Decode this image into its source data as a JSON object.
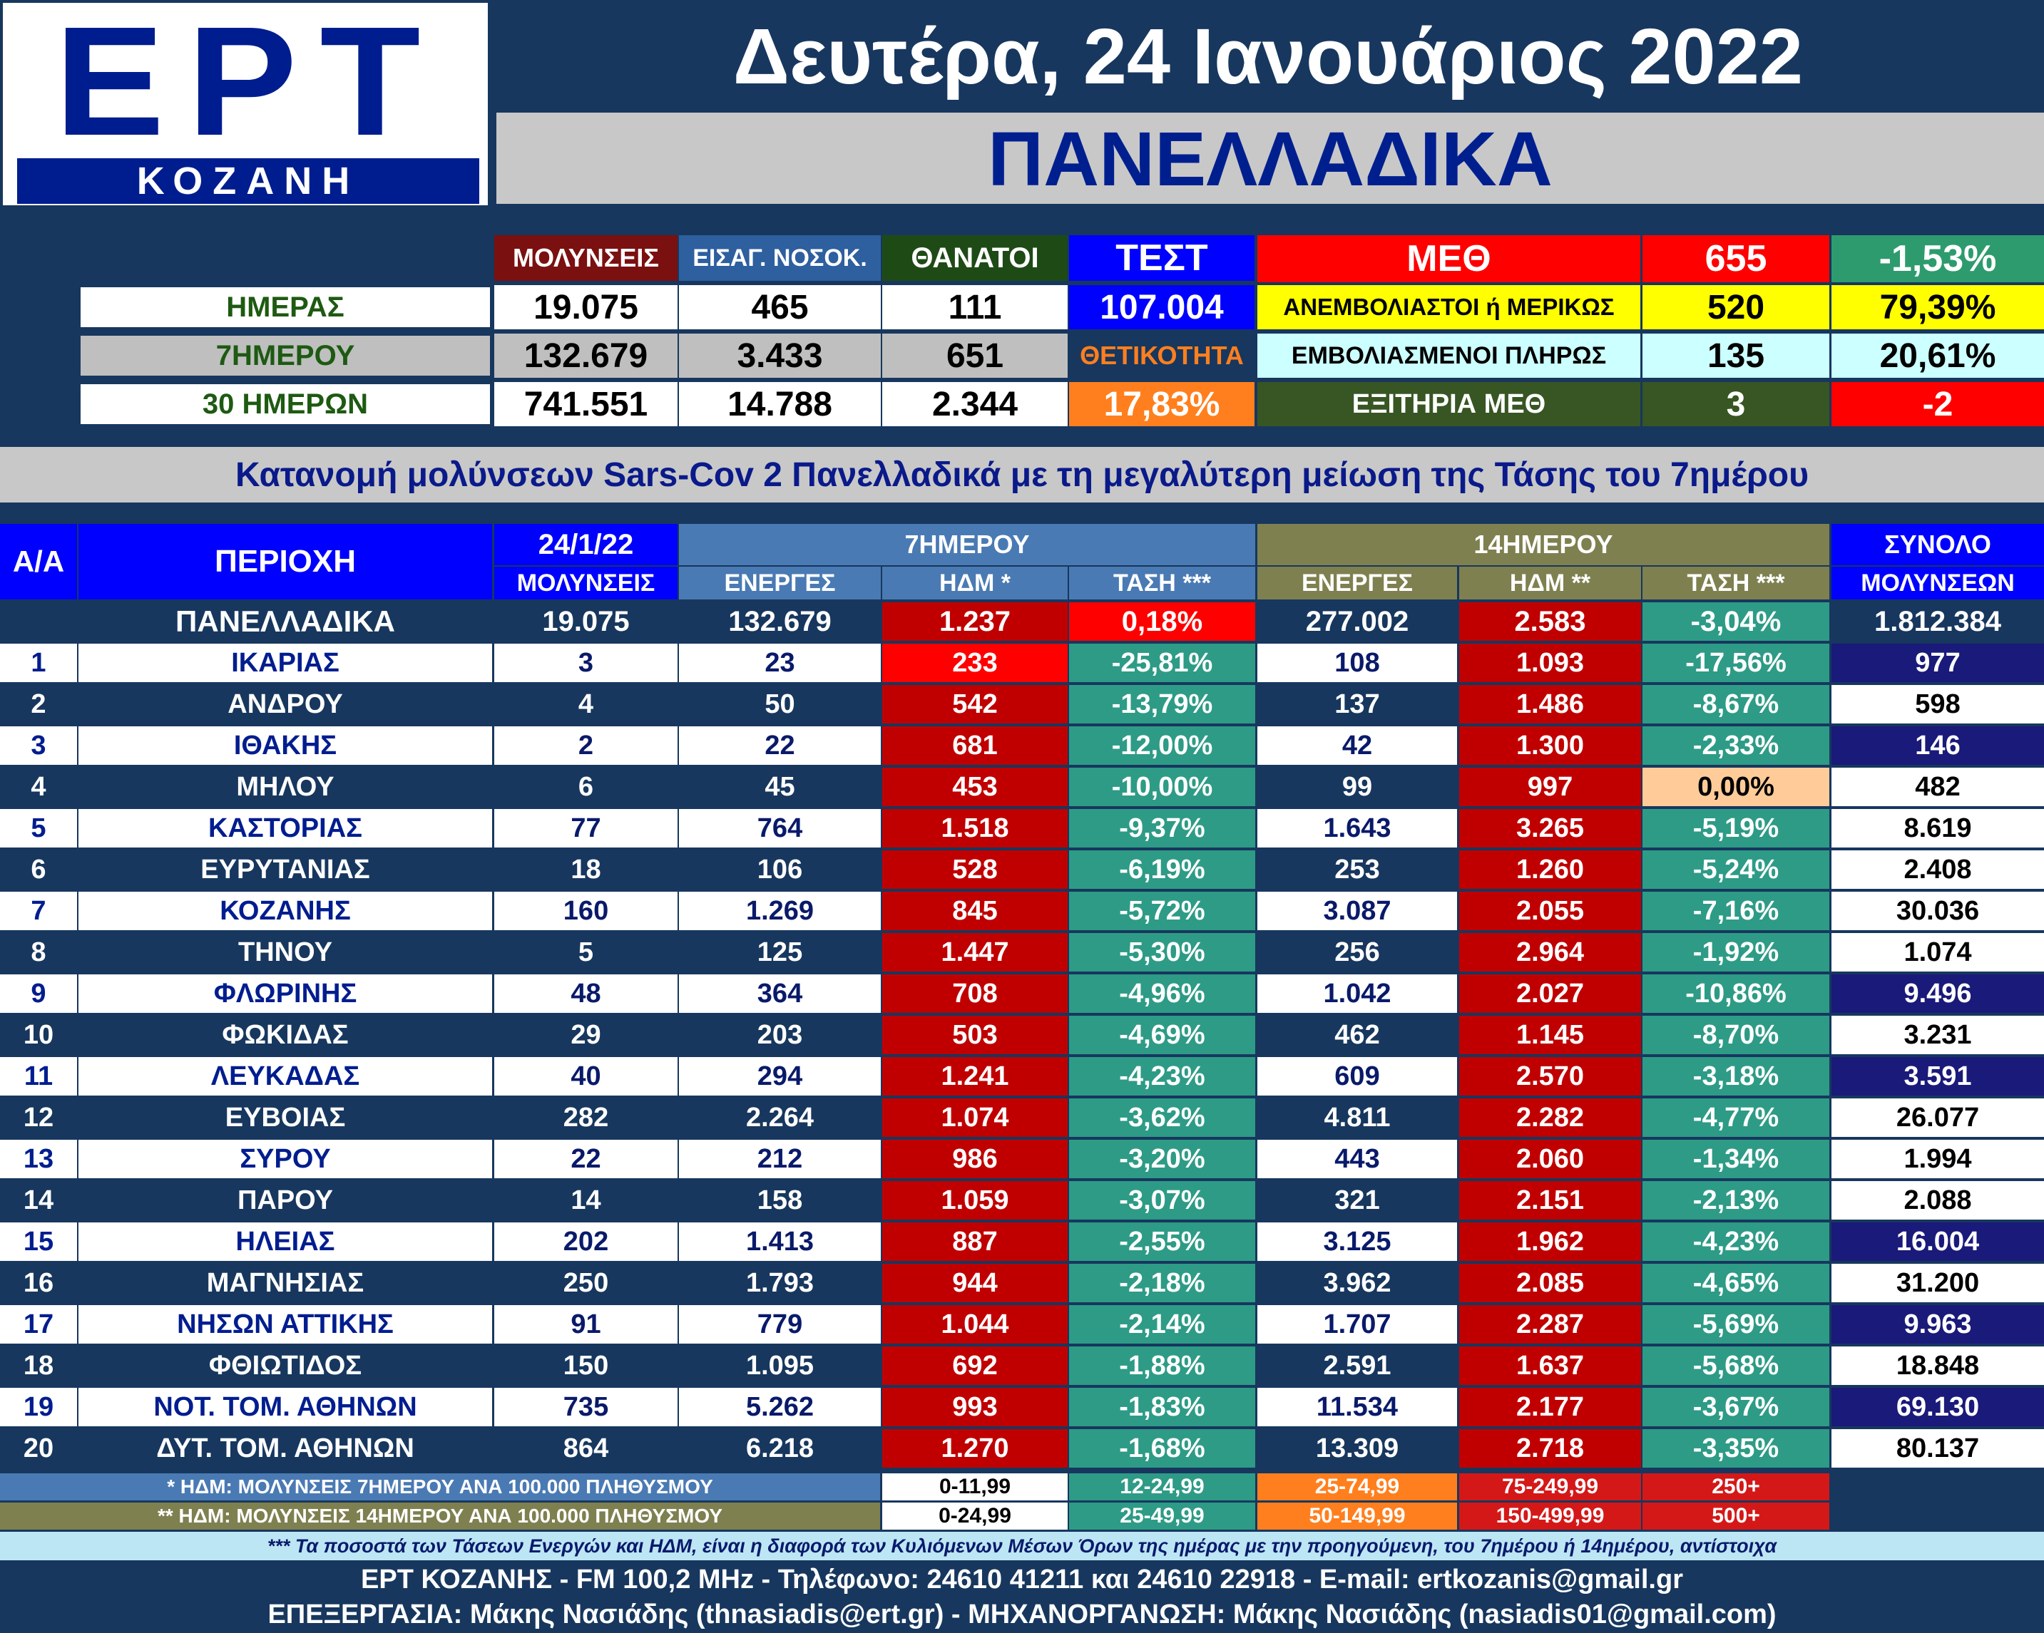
{
  "logo": {
    "brand": "ΕΡΤ",
    "station": "ΚΟΖΑΝΗ"
  },
  "header": {
    "date": "Δευτέρα, 24 Ιανουάριος 2022",
    "region": "ΠΑΝΕΛΛΑΔΙΚΑ"
  },
  "summary": {
    "col_headers": {
      "infections": "ΜΟΛΥΝΣΕΙΣ",
      "admissions": "ΕΙΣΑΓ. ΝΟΣΟΚ.",
      "deaths": "ΘΑΝΑΤΟΙ",
      "tests": "ΤΕΣΤ"
    },
    "rows": [
      {
        "label": "ΗΜΕΡΑΣ",
        "infections": "19.075",
        "admissions": "465",
        "deaths": "111",
        "tests": "107.004"
      },
      {
        "label": "7ΗΜΕΡΟΥ",
        "infections": "132.679",
        "admissions": "3.433",
        "deaths": "651",
        "tests": "ΘΕΤΙΚΟΤΗΤΑ"
      },
      {
        "label": "30 ΗΜΕΡΩΝ",
        "infections": "741.551",
        "admissions": "14.788",
        "deaths": "2.344",
        "tests": "17,83%"
      }
    ],
    "icu": {
      "title": "ΜΕΘ",
      "total": "655",
      "total_change": "-1,53%",
      "unvax_label": "ΑΝΕΜΒΟΛΙΑΣΤΟΙ ή ΜΕΡΙΚΩΣ",
      "unvax": "520",
      "unvax_pct": "79,39%",
      "vax_label": "ΕΜΒΟΛΙΑΣΜΕΝΟΙ ΠΛΗΡΩΣ",
      "vax": "135",
      "vax_pct": "20,61%",
      "discharge_label": "ΕΞΙΤΗΡΙΑ ΜΕΘ",
      "discharge": "3",
      "discharge_change": "-2"
    }
  },
  "table_title": "Κατανομή μολύνσεων Sars-Cov 2 Πανελλαδικά με τη μεγαλύτερη μείωση της Τάσης του 7ημέρου",
  "table_headers": {
    "aa": "Α/Α",
    "area": "ΠΕΡΙΟΧΗ",
    "date": "24/1/22",
    "infections": "ΜΟΛΥΝΣΕΙΣ",
    "group7": "7ΗΜΕΡΟΥ",
    "group14": "14ΗΜΕΡΟΥ",
    "total_top": "ΣΥΝΟΛΟ",
    "total_bottom": "ΜΟΛΥΝΣΕΩΝ",
    "active7": "ΕΝΕΡΓΕΣ",
    "hdm7": "ΗΔΜ *",
    "trend7": "ΤΑΣΗ ***",
    "active14": "ΕΝΕΡΓΕΣ",
    "hdm14": "ΗΔΜ **",
    "trend14": "ΤΑΣΗ ***"
  },
  "national_row": {
    "area": "ΠΑΝΕΛΛΑΔΙΚΑ",
    "infections": "19.075",
    "active7": "132.679",
    "hdm7": "1.237",
    "trend7": "0,18%",
    "active14": "277.002",
    "hdm14": "2.583",
    "trend14": "-3,04%",
    "total": "1.812.384"
  },
  "rows": [
    {
      "n": "1",
      "area": "ΙΚΑΡΙΑΣ",
      "inf": "3",
      "a7": "23",
      "h7": "233",
      "t7": "-25,81%",
      "a14": "108",
      "h14": "1.093",
      "t14": "-17,56%",
      "tot": "977"
    },
    {
      "n": "2",
      "area": "ΑΝΔΡΟΥ",
      "inf": "4",
      "a7": "50",
      "h7": "542",
      "t7": "-13,79%",
      "a14": "137",
      "h14": "1.486",
      "t14": "-8,67%",
      "tot": "598"
    },
    {
      "n": "3",
      "area": "ΙΘΑΚΗΣ",
      "inf": "2",
      "a7": "22",
      "h7": "681",
      "t7": "-12,00%",
      "a14": "42",
      "h14": "1.300",
      "t14": "-2,33%",
      "tot": "146"
    },
    {
      "n": "4",
      "area": "ΜΗΛΟΥ",
      "inf": "6",
      "a7": "45",
      "h7": "453",
      "t7": "-10,00%",
      "a14": "99",
      "h14": "997",
      "t14": "0,00%",
      "tot": "482"
    },
    {
      "n": "5",
      "area": "ΚΑΣΤΟΡΙΑΣ",
      "inf": "77",
      "a7": "764",
      "h7": "1.518",
      "t7": "-9,37%",
      "a14": "1.643",
      "h14": "3.265",
      "t14": "-5,19%",
      "tot": "8.619"
    },
    {
      "n": "6",
      "area": "ΕΥΡΥΤΑΝΙΑΣ",
      "inf": "18",
      "a7": "106",
      "h7": "528",
      "t7": "-6,19%",
      "a14": "253",
      "h14": "1.260",
      "t14": "-5,24%",
      "tot": "2.408"
    },
    {
      "n": "7",
      "area": "ΚΟΖΑΝΗΣ",
      "inf": "160",
      "a7": "1.269",
      "h7": "845",
      "t7": "-5,72%",
      "a14": "3.087",
      "h14": "2.055",
      "t14": "-7,16%",
      "tot": "30.036"
    },
    {
      "n": "8",
      "area": "ΤΗΝΟΥ",
      "inf": "5",
      "a7": "125",
      "h7": "1.447",
      "t7": "-5,30%",
      "a14": "256",
      "h14": "2.964",
      "t14": "-1,92%",
      "tot": "1.074"
    },
    {
      "n": "9",
      "area": "ΦΛΩΡΙΝΗΣ",
      "inf": "48",
      "a7": "364",
      "h7": "708",
      "t7": "-4,96%",
      "a14": "1.042",
      "h14": "2.027",
      "t14": "-10,86%",
      "tot": "9.496"
    },
    {
      "n": "10",
      "area": "ΦΩΚΙΔΑΣ",
      "inf": "29",
      "a7": "203",
      "h7": "503",
      "t7": "-4,69%",
      "a14": "462",
      "h14": "1.145",
      "t14": "-8,70%",
      "tot": "3.231"
    },
    {
      "n": "11",
      "area": "ΛΕΥΚΑΔΑΣ",
      "inf": "40",
      "a7": "294",
      "h7": "1.241",
      "t7": "-4,23%",
      "a14": "609",
      "h14": "2.570",
      "t14": "-3,18%",
      "tot": "3.591"
    },
    {
      "n": "12",
      "area": "ΕΥΒΟΙΑΣ",
      "inf": "282",
      "a7": "2.264",
      "h7": "1.074",
      "t7": "-3,62%",
      "a14": "4.811",
      "h14": "2.282",
      "t14": "-4,77%",
      "tot": "26.077"
    },
    {
      "n": "13",
      "area": "ΣΥΡΟΥ",
      "inf": "22",
      "a7": "212",
      "h7": "986",
      "t7": "-3,20%",
      "a14": "443",
      "h14": "2.060",
      "t14": "-1,34%",
      "tot": "1.994"
    },
    {
      "n": "14",
      "area": "ΠΑΡΟΥ",
      "inf": "14",
      "a7": "158",
      "h7": "1.059",
      "t7": "-3,07%",
      "a14": "321",
      "h14": "2.151",
      "t14": "-2,13%",
      "tot": "2.088"
    },
    {
      "n": "15",
      "area": "ΗΛΕΙΑΣ",
      "inf": "202",
      "a7": "1.413",
      "h7": "887",
      "t7": "-2,55%",
      "a14": "3.125",
      "h14": "1.962",
      "t14": "-4,23%",
      "tot": "16.004"
    },
    {
      "n": "16",
      "area": "ΜΑΓΝΗΣΙΑΣ",
      "inf": "250",
      "a7": "1.793",
      "h7": "944",
      "t7": "-2,18%",
      "a14": "3.962",
      "h14": "2.085",
      "t14": "-4,65%",
      "tot": "31.200"
    },
    {
      "n": "17",
      "area": "ΝΗΣΩΝ ΑΤΤΙΚΗΣ",
      "inf": "91",
      "a7": "779",
      "h7": "1.044",
      "t7": "-2,14%",
      "a14": "1.707",
      "h14": "2.287",
      "t14": "-5,69%",
      "tot": "9.963"
    },
    {
      "n": "18",
      "area": "ΦΘΙΩΤΙΔΟΣ",
      "inf": "150",
      "a7": "1.095",
      "h7": "692",
      "t7": "-1,88%",
      "a14": "2.591",
      "h14": "1.637",
      "t14": "-5,68%",
      "tot": "18.848"
    },
    {
      "n": "19",
      "area": "ΝΟΤ. ΤΟΜ. ΑΘΗΝΩΝ",
      "inf": "735",
      "a7": "5.262",
      "h7": "993",
      "t7": "-1,83%",
      "a14": "11.534",
      "h14": "2.177",
      "t14": "-3,67%",
      "tot": "69.130"
    },
    {
      "n": "20",
      "area": "ΔΥΤ. ΤΟΜ. ΑΘΗΝΩΝ",
      "inf": "864",
      "a7": "6.218",
      "h7": "1.270",
      "t7": "-1,68%",
      "a14": "13.309",
      "h14": "2.718",
      "t14": "-3,35%",
      "tot": "80.137"
    }
  ],
  "legend": {
    "note7": "* ΗΔΜ: ΜΟΛΥΝΣΕΙΣ 7ΗΜΕΡΟΥ ΑΝΑ 100.000 ΠΛΗΘΥΣΜΟΥ",
    "note14": "** ΗΔΜ: ΜΟΛΥΝΣΕΙΣ 14ΗΜΕΡΟΥ ΑΝΑ 100.000 ΠΛΗΘΥΣΜΟΥ",
    "ranges7": [
      "0-11,99",
      "12-24,99",
      "25-74,99",
      "75-249,99",
      "250+"
    ],
    "ranges14": [
      "0-24,99",
      "25-49,99",
      "50-149,99",
      "150-499,99",
      "500+"
    ],
    "colors": [
      "#ffffff",
      "#2e9b86",
      "#ff7f1e",
      "#d41818",
      "#d41818"
    ]
  },
  "footer": {
    "note": "*** Τα ποσοστά των Τάσεων Ενεργών και ΗΔΜ, είναι η διαφορά των Κυλιόμενων Μέσων Όρων της ημέρας με την προηγούμενη, του 7ημέρου ή 14ημέρου, αντίστοιχα",
    "contact": "ΕΡΤ ΚΟΖΑΝΗΣ - FM 100,2 MHz - Τηλέφωνο:  24610 41211 και 24610 22918 - E-mail: ertkozanis@gmail.gr",
    "credits": "ΕΠΕΞΕΡΓΑΣΙΑ: Μάκης Νασιάδης (thnasiadis@ert.gr) - ΜΗΧΑΝΟΡΓΑΝΩΣΗ: Μάκης Νασιάδης (nasiadis01@gmail.com)"
  },
  "colors": {
    "navy": "#17375e",
    "blue_header": "#0000ff",
    "red_hdm": "#c00000",
    "bright_red": "#ff0000",
    "teal_trend": "#2e9b86",
    "olive": "#7f8050",
    "steel": "#4a7ab3",
    "yellow": "#ffff00",
    "light_cyan": "#ccffff",
    "dark_green": "#375623",
    "maroon": "#7b1010",
    "peach": "#ffcc99"
  }
}
